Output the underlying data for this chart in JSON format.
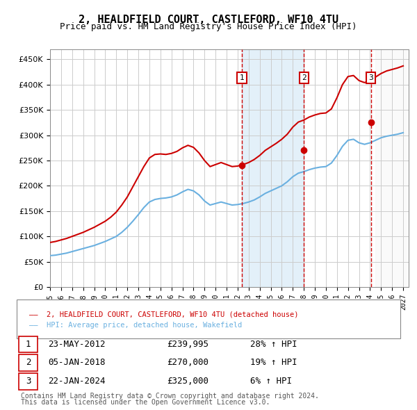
{
  "title": "2, HEALDFIELD COURT, CASTLEFORD, WF10 4TU",
  "subtitle": "Price paid vs. HM Land Registry's House Price Index (HPI)",
  "ylabel_ticks": [
    "£0",
    "£50K",
    "£100K",
    "£150K",
    "£200K",
    "£250K",
    "£300K",
    "£350K",
    "£400K",
    "£450K"
  ],
  "ytick_values": [
    0,
    50000,
    100000,
    150000,
    200000,
    250000,
    300000,
    350000,
    400000,
    450000
  ],
  "ylim": [
    0,
    470000
  ],
  "xlim_start": 1995.0,
  "xlim_end": 2027.5,
  "hpi_color": "#6ab0e0",
  "price_color": "#cc0000",
  "sale_marker_color": "#cc0000",
  "background_color": "#ffffff",
  "plot_bg_color": "#ffffff",
  "grid_color": "#cccccc",
  "legend_label_price": "2, HEALDFIELD COURT, CASTLEFORD, WF10 4TU (detached house)",
  "legend_label_hpi": "HPI: Average price, detached house, Wakefield",
  "sales": [
    {
      "num": 1,
      "date": "23-MAY-2012",
      "price": 239995,
      "pct": "28%",
      "x": 2012.38
    },
    {
      "num": 2,
      "date": "05-JAN-2018",
      "price": 270000,
      "pct": "19%",
      "x": 2018.02
    },
    {
      "num": 3,
      "date": "22-JAN-2024",
      "price": 325000,
      "pct": "6%",
      "x": 2024.07
    }
  ],
  "footnote1": "Contains HM Land Registry data © Crown copyright and database right 2024.",
  "footnote2": "This data is licensed under the Open Government Licence v3.0.",
  "hpi_data_x": [
    1995,
    1995.5,
    1996,
    1996.5,
    1997,
    1997.5,
    1998,
    1998.5,
    1999,
    1999.5,
    2000,
    2000.5,
    2001,
    2001.5,
    2002,
    2002.5,
    2003,
    2003.5,
    2004,
    2004.5,
    2005,
    2005.5,
    2006,
    2006.5,
    2007,
    2007.5,
    2008,
    2008.5,
    2009,
    2009.5,
    2010,
    2010.5,
    2011,
    2011.5,
    2012,
    2012.5,
    2013,
    2013.5,
    2014,
    2014.5,
    2015,
    2015.5,
    2016,
    2016.5,
    2017,
    2017.5,
    2018,
    2018.5,
    2019,
    2019.5,
    2020,
    2020.5,
    2021,
    2021.5,
    2022,
    2022.5,
    2023,
    2023.5,
    2024,
    2024.5,
    2025,
    2025.5,
    2026,
    2026.5,
    2027
  ],
  "hpi_data_y": [
    62000,
    63000,
    65000,
    67000,
    70000,
    73000,
    76000,
    79000,
    82000,
    86000,
    90000,
    95000,
    100000,
    108000,
    118000,
    130000,
    143000,
    157000,
    168000,
    173000,
    175000,
    176000,
    178000,
    182000,
    188000,
    193000,
    190000,
    182000,
    170000,
    162000,
    165000,
    168000,
    165000,
    162000,
    163000,
    165000,
    168000,
    172000,
    178000,
    185000,
    190000,
    195000,
    200000,
    208000,
    218000,
    225000,
    228000,
    232000,
    235000,
    237000,
    238000,
    245000,
    260000,
    278000,
    290000,
    292000,
    285000,
    282000,
    285000,
    290000,
    295000,
    298000,
    300000,
    302000,
    305000
  ],
  "price_data_x": [
    1995,
    1995.5,
    1996,
    1996.5,
    1997,
    1997.5,
    1998,
    1998.5,
    1999,
    1999.5,
    2000,
    2000.5,
    2001,
    2001.5,
    2002,
    2002.5,
    2003,
    2003.5,
    2004,
    2004.5,
    2005,
    2005.5,
    2006,
    2006.5,
    2007,
    2007.5,
    2008,
    2008.5,
    2009,
    2009.5,
    2010,
    2010.5,
    2011,
    2011.5,
    2012,
    2012.5,
    2013,
    2013.5,
    2014,
    2014.5,
    2015,
    2015.5,
    2016,
    2016.5,
    2017,
    2017.5,
    2018,
    2018.5,
    2019,
    2019.5,
    2020,
    2020.5,
    2021,
    2021.5,
    2022,
    2022.5,
    2023,
    2023.5,
    2024,
    2024.5,
    2025,
    2025.5,
    2026,
    2026.5,
    2027
  ],
  "price_data_y": [
    88000,
    90000,
    93000,
    96000,
    100000,
    104000,
    108000,
    113000,
    118000,
    124000,
    130000,
    138000,
    148000,
    162000,
    178000,
    198000,
    218000,
    238000,
    255000,
    262000,
    263000,
    262000,
    264000,
    268000,
    275000,
    280000,
    276000,
    265000,
    250000,
    238000,
    242000,
    246000,
    242000,
    238000,
    239000,
    242000,
    246000,
    252000,
    260000,
    270000,
    277000,
    284000,
    292000,
    302000,
    316000,
    326000,
    330000,
    336000,
    340000,
    343000,
    344000,
    352000,
    374000,
    400000,
    416000,
    418000,
    408000,
    404000,
    408000,
    415000,
    422000,
    427000,
    430000,
    433000,
    437000
  ],
  "shade_region": [
    2018.02,
    2024.07
  ],
  "future_hatch_start": 2024.5,
  "sale_box_color": "#cc0000",
  "sale_box_facecolor": "#ffffff"
}
